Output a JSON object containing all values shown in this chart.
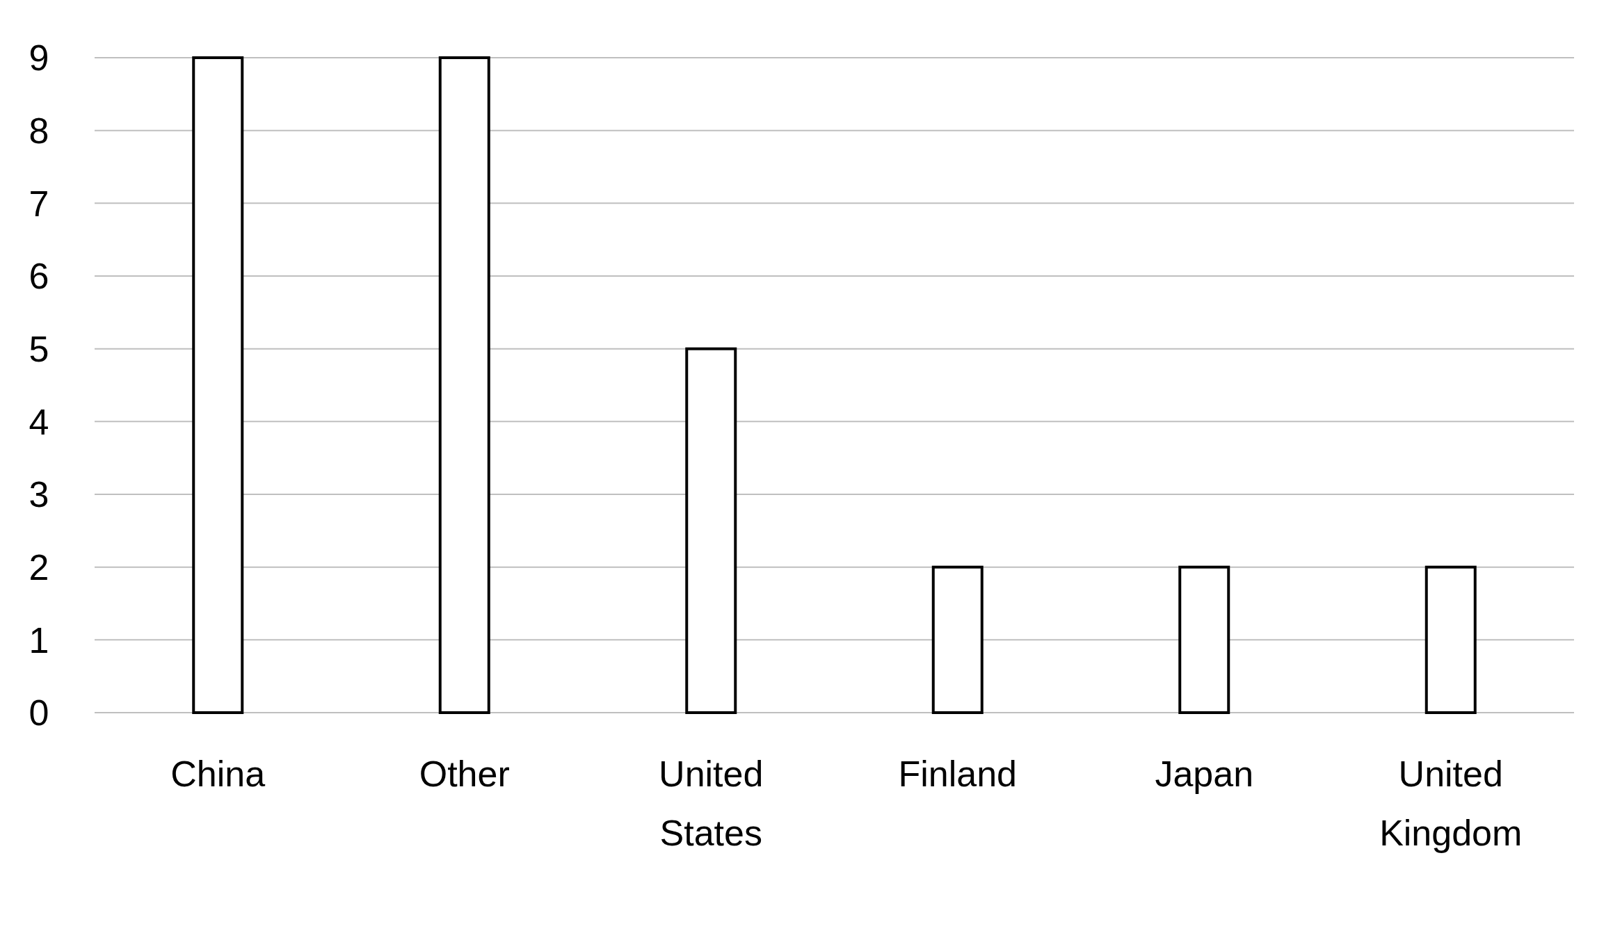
{
  "chart_data": {
    "type": "bar",
    "categories": [
      "China",
      "Other",
      "United States",
      "Finland",
      "Japan",
      "United Kingdom"
    ],
    "values": [
      9,
      9,
      5,
      2,
      2,
      2
    ],
    "color": "#ffffff",
    "ylim": [
      0,
      9
    ],
    "yticks": [
      0,
      1,
      2,
      3,
      4,
      5,
      6,
      7,
      8,
      9
    ],
    "grid": "y"
  }
}
